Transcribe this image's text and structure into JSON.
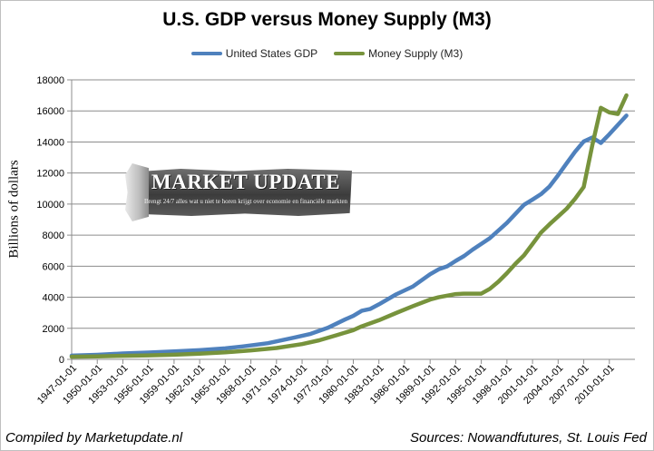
{
  "chart_data": {
    "type": "line",
    "title": "U.S. GDP versus Money Supply (M3)",
    "ylabel": "Billions of dollars",
    "ylim": [
      0,
      18000
    ],
    "yticks": [
      0,
      2000,
      4000,
      6000,
      8000,
      10000,
      12000,
      14000,
      16000,
      18000
    ],
    "ytick_labels": [
      "0",
      "2000",
      "4000",
      "6000",
      "8000",
      "10000",
      "12000",
      "14000",
      "16000",
      "18000"
    ],
    "xlim": [
      1947,
      2013
    ],
    "xticks": [
      1947,
      1950,
      1953,
      1956,
      1959,
      1962,
      1965,
      1968,
      1971,
      1974,
      1977,
      1980,
      1983,
      1986,
      1989,
      1992,
      1995,
      1998,
      2001,
      2004,
      2007,
      2010
    ],
    "xtick_labels": [
      "1947-01-01",
      "1950-01-01",
      "1953-01-01",
      "1956-01-01",
      "1959-01-01",
      "1962-01-01",
      "1965-01-01",
      "1968-01-01",
      "1971-01-01",
      "1974-01-01",
      "1977-01-01",
      "1980-01-01",
      "1983-01-01",
      "1986-01-01",
      "1989-01-01",
      "1992-01-01",
      "1995-01-01",
      "1998-01-01",
      "2001-01-01",
      "2004-01-01",
      "2007-01-01",
      "2010-01-01"
    ],
    "grid": "horizontal",
    "legend": "top-center",
    "series": [
      {
        "name": "United States GDP",
        "color": "#4f81bd",
        "points": [
          [
            1947,
            240
          ],
          [
            1950,
            290
          ],
          [
            1953,
            380
          ],
          [
            1956,
            440
          ],
          [
            1959,
            510
          ],
          [
            1962,
            590
          ],
          [
            1965,
            710
          ],
          [
            1967,
            830
          ],
          [
            1970,
            1040
          ],
          [
            1973,
            1390
          ],
          [
            1975,
            1640
          ],
          [
            1977,
            2030
          ],
          [
            1979,
            2560
          ],
          [
            1980,
            2800
          ],
          [
            1981,
            3130
          ],
          [
            1982,
            3250
          ],
          [
            1983,
            3540
          ],
          [
            1985,
            4180
          ],
          [
            1987,
            4700
          ],
          [
            1989,
            5480
          ],
          [
            1990,
            5800
          ],
          [
            1991,
            5990
          ],
          [
            1992,
            6340
          ],
          [
            1993,
            6660
          ],
          [
            1994,
            7070
          ],
          [
            1996,
            7800
          ],
          [
            1997,
            8300
          ],
          [
            1998,
            8790
          ],
          [
            2000,
            9950
          ],
          [
            2001,
            10290
          ],
          [
            2002,
            10640
          ],
          [
            2003,
            11140
          ],
          [
            2004,
            11860
          ],
          [
            2005,
            12630
          ],
          [
            2006,
            13380
          ],
          [
            2007,
            14030
          ],
          [
            2008,
            14290
          ],
          [
            2009,
            13940
          ],
          [
            2010,
            14500
          ],
          [
            2011,
            15100
          ],
          [
            2012,
            15700
          ]
        ]
      },
      {
        "name": "Money Supply (M3)",
        "color": "#77933c",
        "points": [
          [
            1947,
            170
          ],
          [
            1950,
            190
          ],
          [
            1953,
            230
          ],
          [
            1956,
            260
          ],
          [
            1959,
            300
          ],
          [
            1962,
            360
          ],
          [
            1965,
            450
          ],
          [
            1968,
            580
          ],
          [
            1971,
            730
          ],
          [
            1974,
            980
          ],
          [
            1976,
            1230
          ],
          [
            1978,
            1550
          ],
          [
            1980,
            1880
          ],
          [
            1981,
            2130
          ],
          [
            1983,
            2520
          ],
          [
            1985,
            2980
          ],
          [
            1987,
            3430
          ],
          [
            1989,
            3850
          ],
          [
            1990,
            4000
          ],
          [
            1992,
            4200
          ],
          [
            1993,
            4230
          ],
          [
            1995,
            4230
          ],
          [
            1996,
            4540
          ],
          [
            1997,
            5000
          ],
          [
            1998,
            5550
          ],
          [
            1999,
            6160
          ],
          [
            2000,
            6700
          ],
          [
            2001,
            7430
          ],
          [
            2002,
            8170
          ],
          [
            2003,
            8700
          ],
          [
            2004,
            9200
          ],
          [
            2005,
            9700
          ],
          [
            2006,
            10350
          ],
          [
            2007,
            11100
          ],
          [
            2008,
            13800
          ],
          [
            2009,
            16200
          ],
          [
            2010,
            15900
          ],
          [
            2011,
            15800
          ],
          [
            2012,
            17000
          ]
        ]
      }
    ]
  },
  "footer": {
    "left": "Compiled by Marketupdate.nl",
    "right": "Sources: Nowandfutures, St. Louis Fed"
  },
  "watermark": {
    "title": "MARKET UPDATE",
    "subtitle": "Brengt 24/7 alles wat u niet te horen krijgt over economie en financiële markten"
  }
}
